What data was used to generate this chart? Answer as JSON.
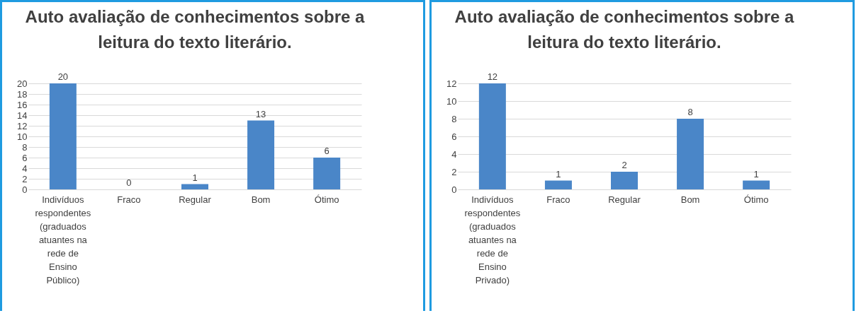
{
  "chart_data": [
    {
      "type": "bar",
      "title": "Auto avaliação de conhecimentos sobre a leitura do texto literário.",
      "categories": [
        "Indivíduos respondentes (graduados atuantes na rede de Ensino Público)",
        "Fraco",
        "Regular",
        "Bom",
        "Ótimo"
      ],
      "values": [
        20,
        0,
        1,
        13,
        6
      ],
      "color": "#4a86c8",
      "ylim": [
        0,
        20
      ],
      "yticks": [
        0,
        2,
        4,
        6,
        8,
        10,
        12,
        14,
        16,
        18,
        20
      ],
      "grid": "y",
      "data_labels": true
    },
    {
      "type": "bar",
      "title": "Auto avaliação de conhecimentos sobre a leitura do texto literário.",
      "categories": [
        "Indivíduos respondentes (graduados atuantes na rede de Ensino Privado)",
        "Fraco",
        "Regular",
        "Bom",
        "Ótimo"
      ],
      "values": [
        12,
        1,
        2,
        8,
        1
      ],
      "color": "#4a86c8",
      "ylim": [
        0,
        12
      ],
      "yticks": [
        0,
        2,
        4,
        6,
        8,
        10,
        12
      ],
      "grid": "y",
      "data_labels": true
    }
  ]
}
